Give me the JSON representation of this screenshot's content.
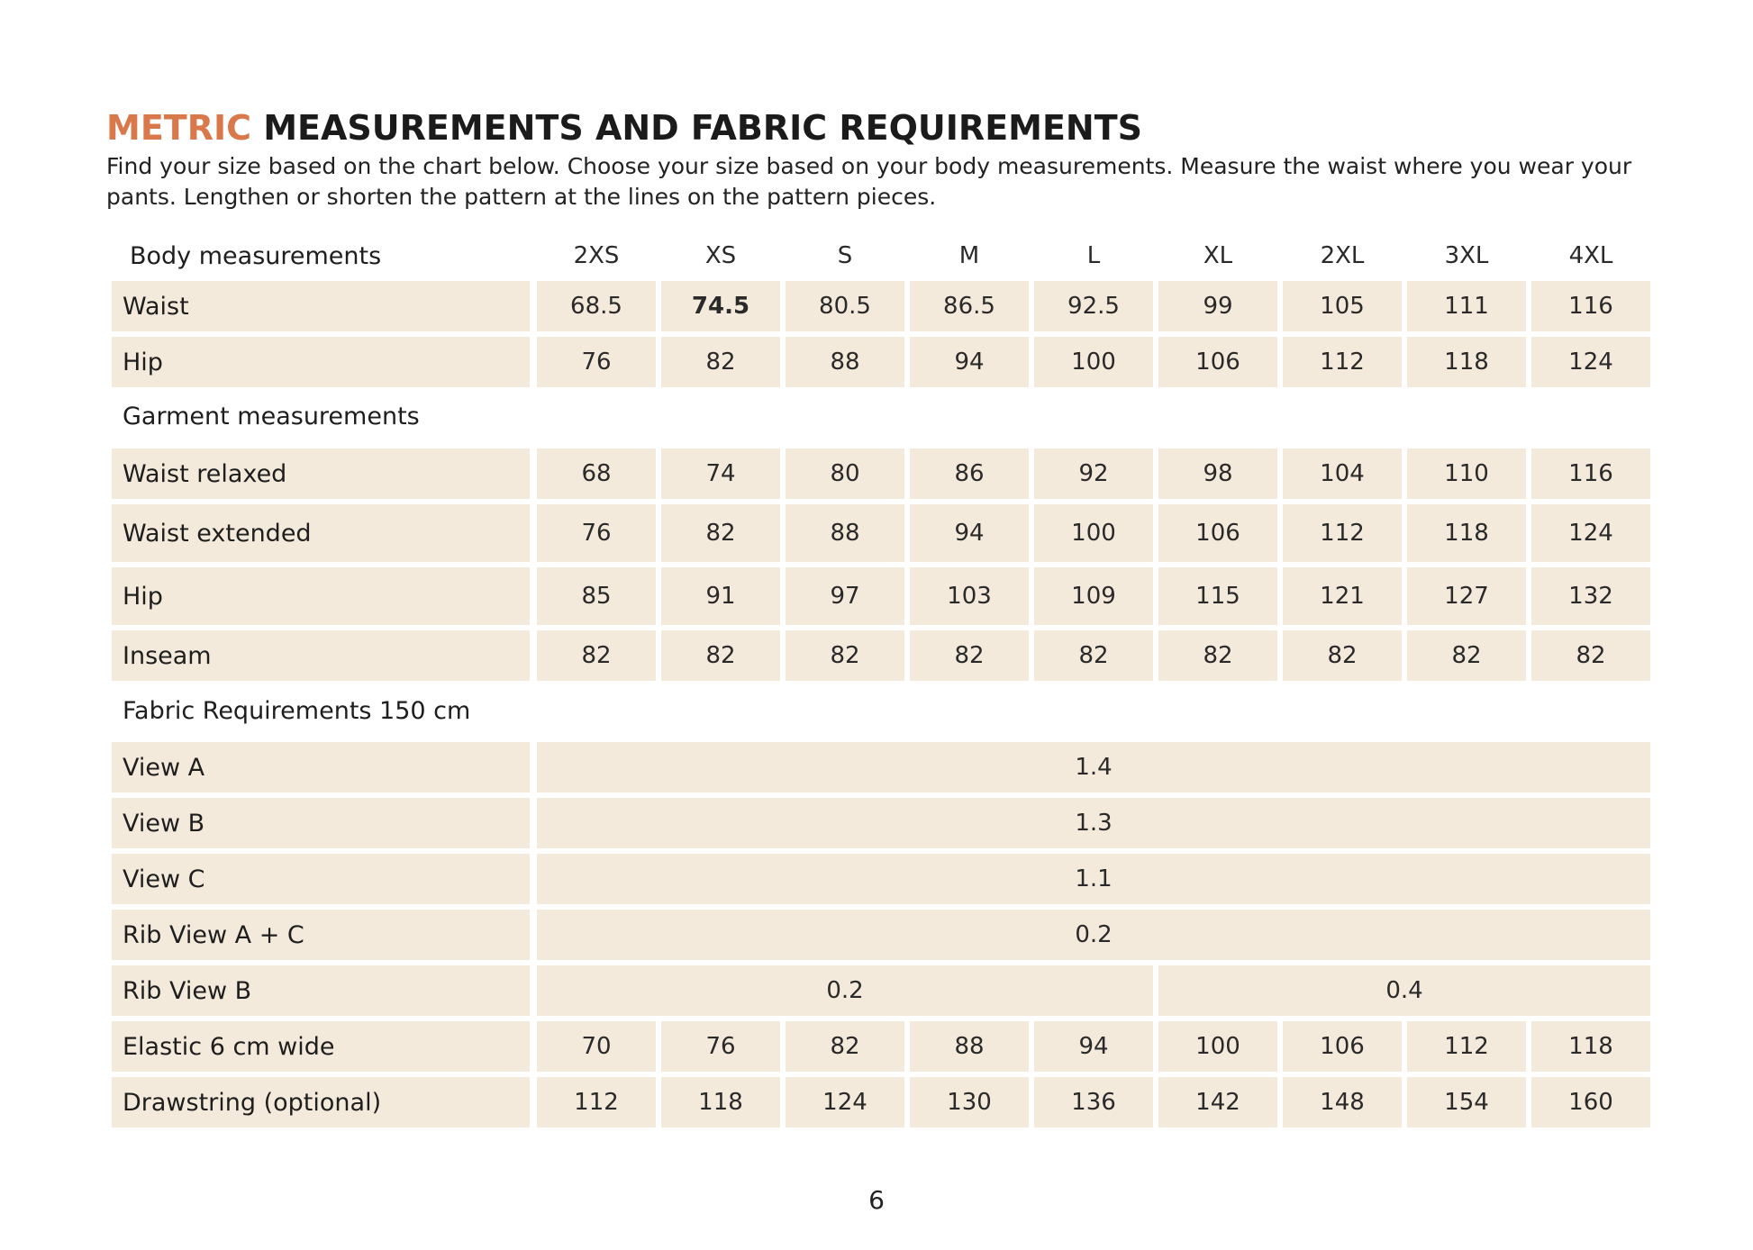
{
  "title": {
    "accent": "METRIC",
    "rest": "MEASUREMENTS AND FABRIC REQUIREMENTS"
  },
  "intro": "Find your size based on the chart below. Choose your size based on your body measurements. Measure the waist where you wear your pants. Lengthen or shorten the pattern at the lines on the pattern pieces.",
  "sizes": [
    "2XS",
    "XS",
    "S",
    "M",
    "L",
    "XL",
    "2XL",
    "3XL",
    "4XL"
  ],
  "body": {
    "heading": "Body measurements",
    "rows": [
      {
        "label": "Waist",
        "values": [
          "68.5",
          "74.5",
          "80.5",
          "86.5",
          "92.5",
          "99",
          "105",
          "111",
          "116"
        ]
      },
      {
        "label": "Hip",
        "values": [
          "76",
          "82",
          "88",
          "94",
          "100",
          "106",
          "112",
          "118",
          "124"
        ]
      }
    ]
  },
  "garment": {
    "heading": "Garment measurements",
    "rows": [
      {
        "label": "Waist relaxed",
        "values": [
          "68",
          "74",
          "80",
          "86",
          "92",
          "98",
          "104",
          "110",
          "116"
        ]
      },
      {
        "label": "Waist extended",
        "values": [
          "76",
          "82",
          "88",
          "94",
          "100",
          "106",
          "112",
          "118",
          "124"
        ]
      },
      {
        "label": "Hip",
        "values": [
          "85",
          "91",
          "97",
          "103",
          "109",
          "115",
          "121",
          "127",
          "132"
        ]
      },
      {
        "label": "Inseam",
        "values": [
          "82",
          "82",
          "82",
          "82",
          "82",
          "82",
          "82",
          "82",
          "82"
        ]
      }
    ]
  },
  "fabric": {
    "heading": "Fabric Requirements 150 cm",
    "rows": [
      {
        "label": "View A",
        "all": "1.4"
      },
      {
        "label": "View B",
        "all": "1.3"
      },
      {
        "label": "View C",
        "all": "1.1"
      },
      {
        "label": "Rib View A + C",
        "all": "0.2"
      },
      {
        "label": "Rib View B",
        "group1": "0.2",
        "group2": "0.4"
      },
      {
        "label": "Elastic 6 cm wide",
        "values": [
          "70",
          "76",
          "82",
          "88",
          "94",
          "100",
          "106",
          "112",
          "118"
        ]
      },
      {
        "label": "Drawstring (optional)",
        "values": [
          "112",
          "118",
          "124",
          "130",
          "136",
          "142",
          "148",
          "154",
          "160"
        ]
      }
    ]
  },
  "page_number": "6"
}
